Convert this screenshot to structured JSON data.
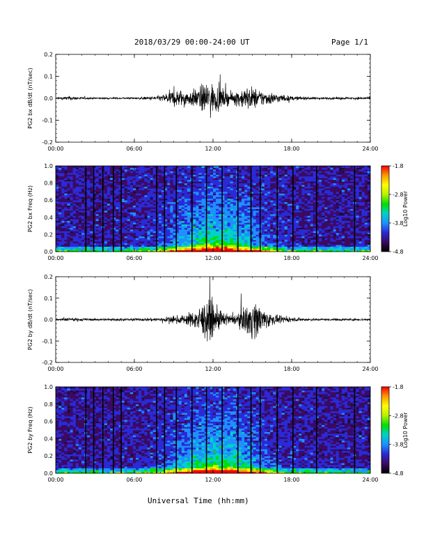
{
  "header": {
    "title": "2018/03/29  00:00-24:00 UT",
    "page": "Page 1/1"
  },
  "xlabel": "Universal Time (hh:mm)",
  "colors": {
    "colormap": [
      "#000000",
      "#3b0a63",
      "#2a2ad6",
      "#1e90ff",
      "#00d2c8",
      "#00e000",
      "#b8f000",
      "#ffff00",
      "#ff9900",
      "#ff0000"
    ]
  },
  "chart_data": [
    {
      "type": "line",
      "ylabel": "PG2 bx dB/dt (nT/sec)",
      "xlim": [
        0,
        24
      ],
      "ylim": [
        -0.2,
        0.2
      ],
      "x_ticks": [
        "00:00",
        "06:00",
        "12:00",
        "18:00",
        "24:00"
      ],
      "y_ticks": [
        "-0.2",
        "-0.1",
        "0.0",
        "0.1",
        "0.2"
      ],
      "envelope": {
        "hours": [
          0,
          1,
          2,
          3,
          4,
          5,
          6,
          7,
          8,
          8.5,
          9,
          9.5,
          10,
          10.5,
          11,
          11.5,
          12,
          12.5,
          13,
          13.5,
          14,
          14.5,
          15,
          15.5,
          16,
          16.5,
          17,
          18,
          19,
          20,
          21,
          22,
          23,
          24
        ],
        "amplitude": [
          0.005,
          0.015,
          0.008,
          0.006,
          0.006,
          0.006,
          0.006,
          0.01,
          0.02,
          0.04,
          0.06,
          0.06,
          0.05,
          0.06,
          0.08,
          0.12,
          0.1,
          0.08,
          0.05,
          0.04,
          0.06,
          0.08,
          0.08,
          0.06,
          0.05,
          0.04,
          0.03,
          0.015,
          0.01,
          0.008,
          0.008,
          0.008,
          0.008,
          0.008
        ]
      }
    },
    {
      "type": "heatmap",
      "ylabel": "PG2 bx Freq (Hz)",
      "xlim": [
        0,
        24
      ],
      "ylim": [
        0,
        1
      ],
      "x_ticks": [
        "00:00",
        "06:00",
        "12:00",
        "18:00",
        "24:00"
      ],
      "y_ticks": [
        "0.0",
        "0.2",
        "0.4",
        "0.6",
        "0.8",
        "1.0"
      ],
      "colorbar": {
        "label": "Log10 Power",
        "ticks": [
          "-1.8",
          "-2.8",
          "-3.8",
          "-4.8"
        ],
        "range": [
          -4.8,
          -1.8
        ]
      },
      "gaps_hours": [
        2.3,
        2.9,
        3.6,
        4.4,
        5.0,
        7.7,
        8.3,
        9.2,
        10.4,
        11.5,
        12.7,
        13.9,
        14.9,
        15.6,
        16.9,
        18.1,
        19.9,
        22.8
      ]
    },
    {
      "type": "line",
      "ylabel": "PG2 by dB/dt (nT/sec)",
      "xlim": [
        0,
        24
      ],
      "ylim": [
        -0.2,
        0.2
      ],
      "x_ticks": [
        "00:00",
        "06:00",
        "12:00",
        "18:00",
        "24:00"
      ],
      "y_ticks": [
        "-0.2",
        "-0.1",
        "0.0",
        "0.1",
        "0.2"
      ],
      "envelope": {
        "hours": [
          0,
          1,
          2,
          3,
          4,
          5,
          6,
          7,
          8,
          8.5,
          9,
          9.5,
          10,
          10.5,
          11,
          11.5,
          12,
          12.5,
          13,
          13.5,
          14,
          14.5,
          15,
          15.5,
          16,
          16.5,
          17,
          18,
          19,
          20,
          21,
          22,
          23,
          24
        ],
        "amplitude": [
          0.006,
          0.012,
          0.01,
          0.007,
          0.008,
          0.008,
          0.008,
          0.01,
          0.015,
          0.02,
          0.025,
          0.03,
          0.04,
          0.06,
          0.09,
          0.15,
          0.12,
          0.07,
          0.04,
          0.03,
          0.05,
          0.1,
          0.14,
          0.11,
          0.07,
          0.04,
          0.025,
          0.015,
          0.01,
          0.008,
          0.008,
          0.008,
          0.008,
          0.008
        ]
      }
    },
    {
      "type": "heatmap",
      "ylabel": "PG2 by Freq (Hz)",
      "xlim": [
        0,
        24
      ],
      "ylim": [
        0,
        1
      ],
      "x_ticks": [
        "00:00",
        "06:00",
        "12:00",
        "18:00",
        "24:00"
      ],
      "y_ticks": [
        "0.0",
        "0.2",
        "0.4",
        "0.6",
        "0.8",
        "1.0"
      ],
      "colorbar": {
        "label": "Log10 Power",
        "ticks": [
          "-1.8",
          "-2.8",
          "-3.8",
          "-4.8"
        ],
        "range": [
          -4.8,
          -1.8
        ]
      },
      "gaps_hours": [
        2.3,
        2.9,
        3.6,
        4.4,
        5.0,
        7.7,
        8.3,
        9.2,
        10.4,
        11.5,
        12.7,
        13.9,
        14.9,
        15.6,
        16.9,
        18.1,
        19.9,
        22.8
      ]
    }
  ]
}
